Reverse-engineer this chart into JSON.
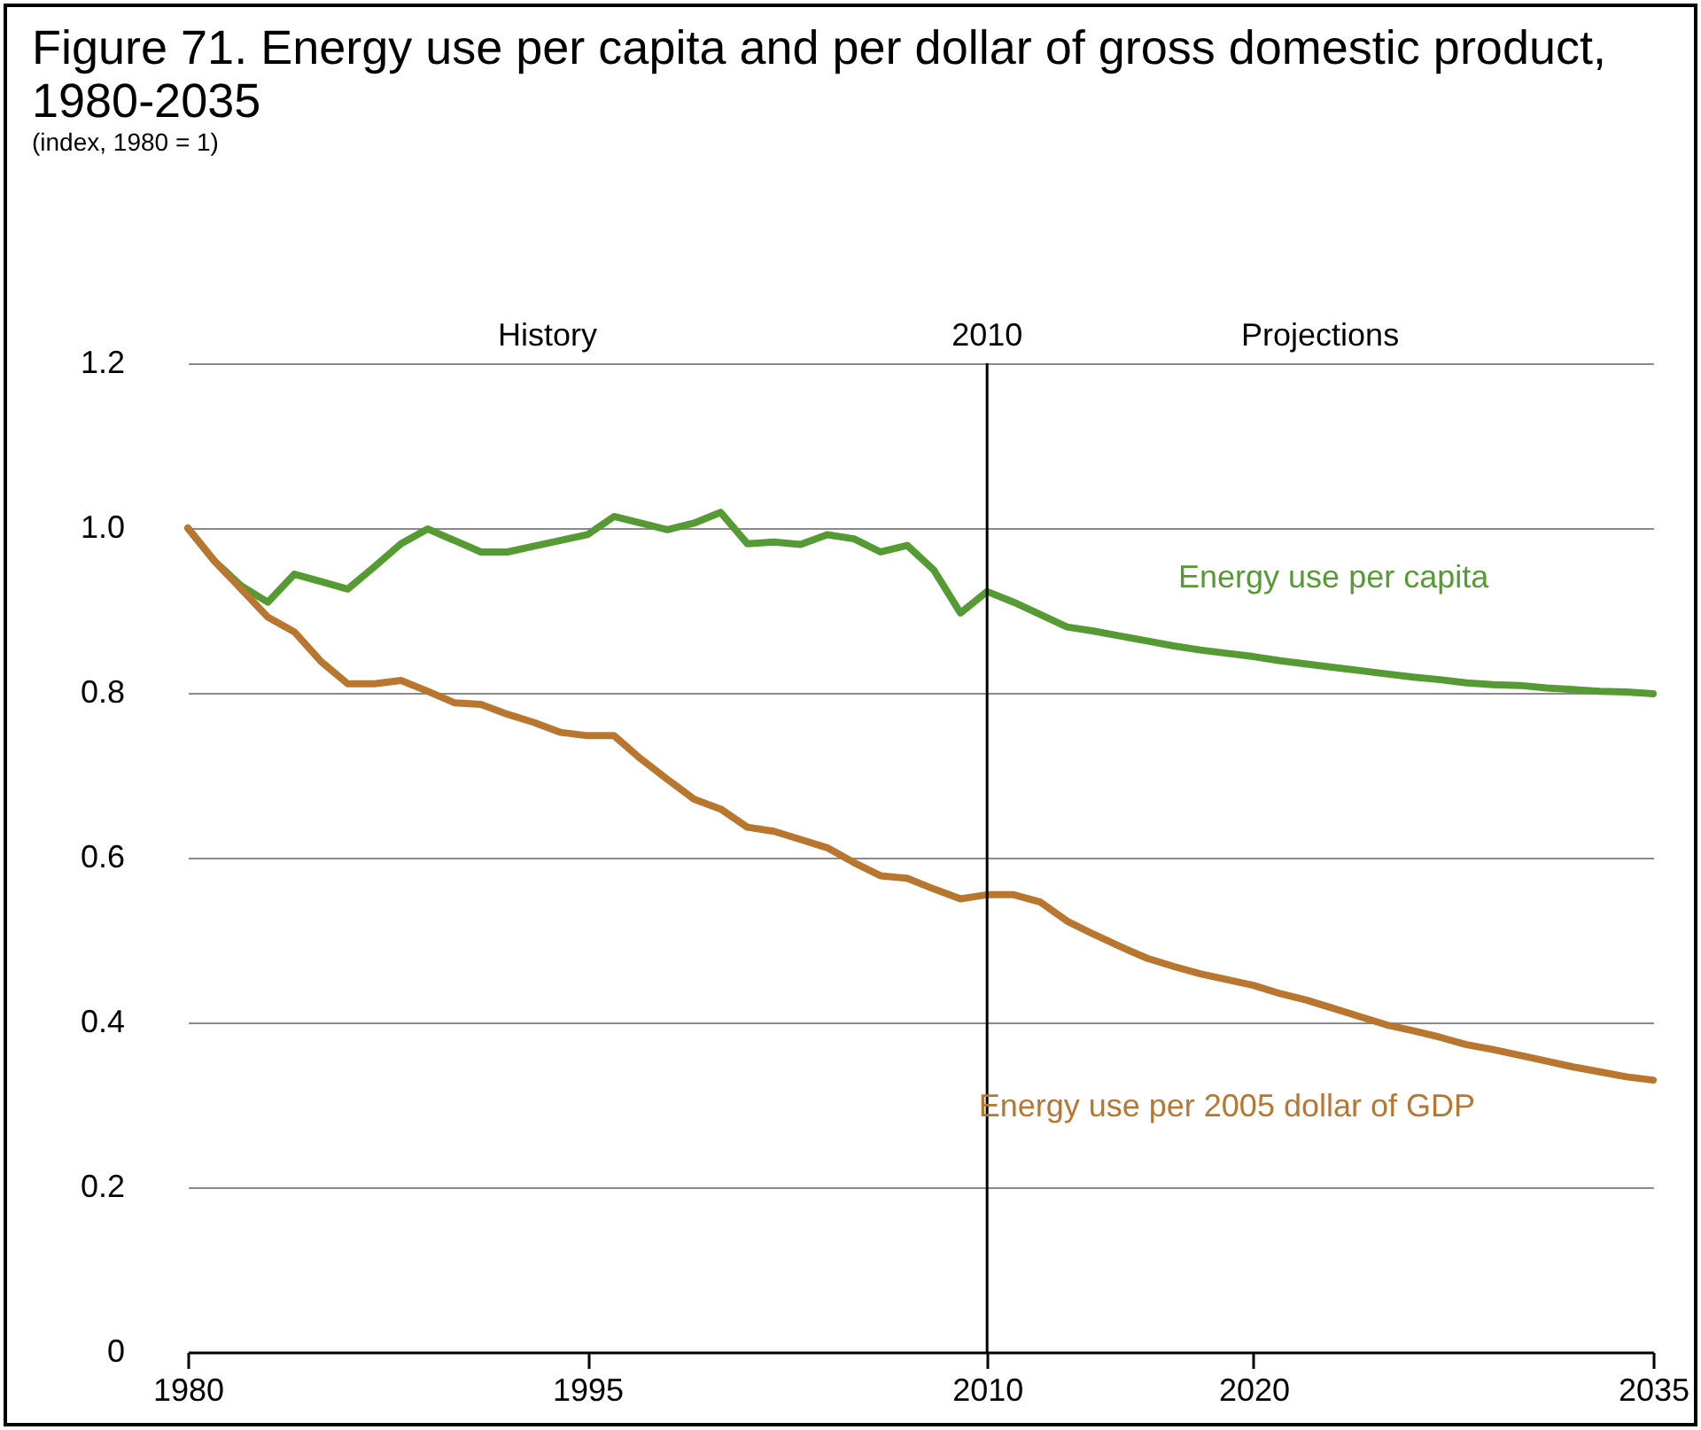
{
  "chart_data": {
    "type": "line",
    "title": "Figure 71. Energy use per capita and per dollar of gross domestic product, 1980-2035",
    "subtitle": "(index, 1980 = 1)",
    "x": [
      1980,
      1981,
      1982,
      1983,
      1984,
      1985,
      1986,
      1987,
      1988,
      1989,
      1990,
      1991,
      1992,
      1993,
      1994,
      1995,
      1996,
      1997,
      1998,
      1999,
      2000,
      2001,
      2002,
      2003,
      2004,
      2005,
      2006,
      2007,
      2008,
      2009,
      2010,
      2011,
      2012,
      2013,
      2014,
      2015,
      2016,
      2017,
      2018,
      2019,
      2020,
      2021,
      2022,
      2023,
      2024,
      2025,
      2026,
      2027,
      2028,
      2029,
      2030,
      2031,
      2032,
      2033,
      2034,
      2035
    ],
    "series": [
      {
        "name": "Energy use per capita",
        "color": "#559a32",
        "values": [
          1.0,
          0.96,
          0.93,
          0.91,
          0.944,
          0.935,
          0.926,
          0.953,
          0.981,
          0.999,
          0.985,
          0.971,
          0.971,
          0.978,
          0.985,
          0.992,
          1.014,
          1.006,
          0.998,
          1.006,
          1.019,
          0.981,
          0.983,
          0.98,
          0.992,
          0.987,
          0.971,
          0.979,
          0.949,
          0.897,
          0.923,
          0.91,
          0.895,
          0.88,
          0.875,
          0.869,
          0.863,
          0.857,
          0.852,
          0.848,
          0.844,
          0.839,
          0.835,
          0.831,
          0.827,
          0.823,
          0.819,
          0.816,
          0.812,
          0.81,
          0.809,
          0.806,
          0.804,
          0.802,
          0.801,
          0.799
        ]
      },
      {
        "name": "Energy use per 2005 dollar of GDP",
        "color": "#b8762e",
        "values": [
          1.0,
          0.96,
          0.926,
          0.892,
          0.874,
          0.838,
          0.811,
          0.811,
          0.815,
          0.802,
          0.788,
          0.786,
          0.774,
          0.764,
          0.752,
          0.748,
          0.748,
          0.72,
          0.695,
          0.671,
          0.659,
          0.637,
          0.632,
          0.622,
          0.612,
          0.594,
          0.578,
          0.575,
          0.562,
          0.55,
          0.555,
          0.555,
          0.546,
          0.523,
          0.507,
          0.492,
          0.478,
          0.468,
          0.459,
          0.452,
          0.445,
          0.435,
          0.427,
          0.417,
          0.407,
          0.397,
          0.39,
          0.382,
          0.373,
          0.367,
          0.36,
          0.353,
          0.346,
          0.34,
          0.334,
          0.33
        ]
      }
    ],
    "xlim": [
      1980,
      2035
    ],
    "xticks": [
      1980,
      1995,
      2010,
      2020,
      2035
    ],
    "ylim": [
      0,
      1.2
    ],
    "yticks": [
      0,
      0.2,
      0.4,
      0.6,
      0.8,
      {
        "value": 1,
        "label": "1.0"
      },
      1.2
    ],
    "grid": "y",
    "legend": false,
    "ref_lines": [
      {
        "axis": "x",
        "value": 2010,
        "label": "2010",
        "color": "#000000"
      }
    ],
    "annotations": [
      "History",
      "Projections"
    ]
  }
}
